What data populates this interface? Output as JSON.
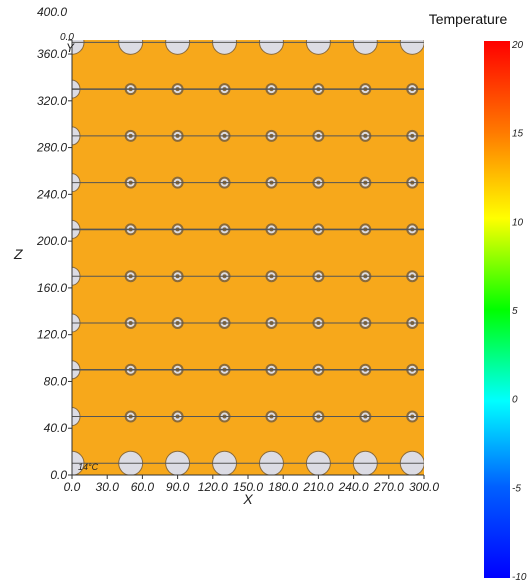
{
  "plot": {
    "x_axis_label": "X",
    "z_axis_label": "Z",
    "y_axis_marker": "Y",
    "corner_label_top": "0.0",
    "bottom_left_label": "14°C",
    "x_ticks": [
      "0.0",
      "30.0",
      "60.0",
      "90.0",
      "120.0",
      "150.0",
      "180.0",
      "210.0",
      "240.0",
      "270.0",
      "300.0"
    ],
    "z_ticks": [
      "0.0",
      "40.0",
      "80.0",
      "120.0",
      "160.0",
      "200.0",
      "240.0",
      "280.0",
      "320.0",
      "360.0",
      "400.0"
    ],
    "x_tick_values": [
      0,
      30,
      60,
      90,
      120,
      150,
      180,
      210,
      240,
      270,
      300
    ],
    "z_tick_values": [
      0,
      40,
      80,
      120,
      160,
      200,
      240,
      280,
      320,
      360,
      400
    ],
    "x_range": [
      0,
      300
    ],
    "z_range": [
      0,
      400
    ],
    "z_visible_max": 372,
    "field_color": "#F7A81B",
    "hole_fill_color": "#DCDCE4",
    "ring_color": "#8A6A3A",
    "hole_x_positions": [
      0,
      50,
      90,
      130,
      170,
      210,
      250,
      290,
      330
    ],
    "hole_z_positions": [
      10,
      50,
      90,
      130,
      170,
      210,
      250,
      290,
      330,
      370
    ],
    "line_z_positions": [
      10,
      50,
      90,
      130,
      170,
      210,
      250,
      290,
      330,
      370
    ]
  },
  "legend": {
    "title": "Temperature",
    "ticks": [
      "20",
      "15",
      "10",
      "5",
      "0",
      "-5",
      "-10"
    ],
    "tick_values": [
      20,
      15,
      10,
      5,
      0,
      -5,
      -10
    ],
    "range": [
      -10,
      20
    ]
  }
}
